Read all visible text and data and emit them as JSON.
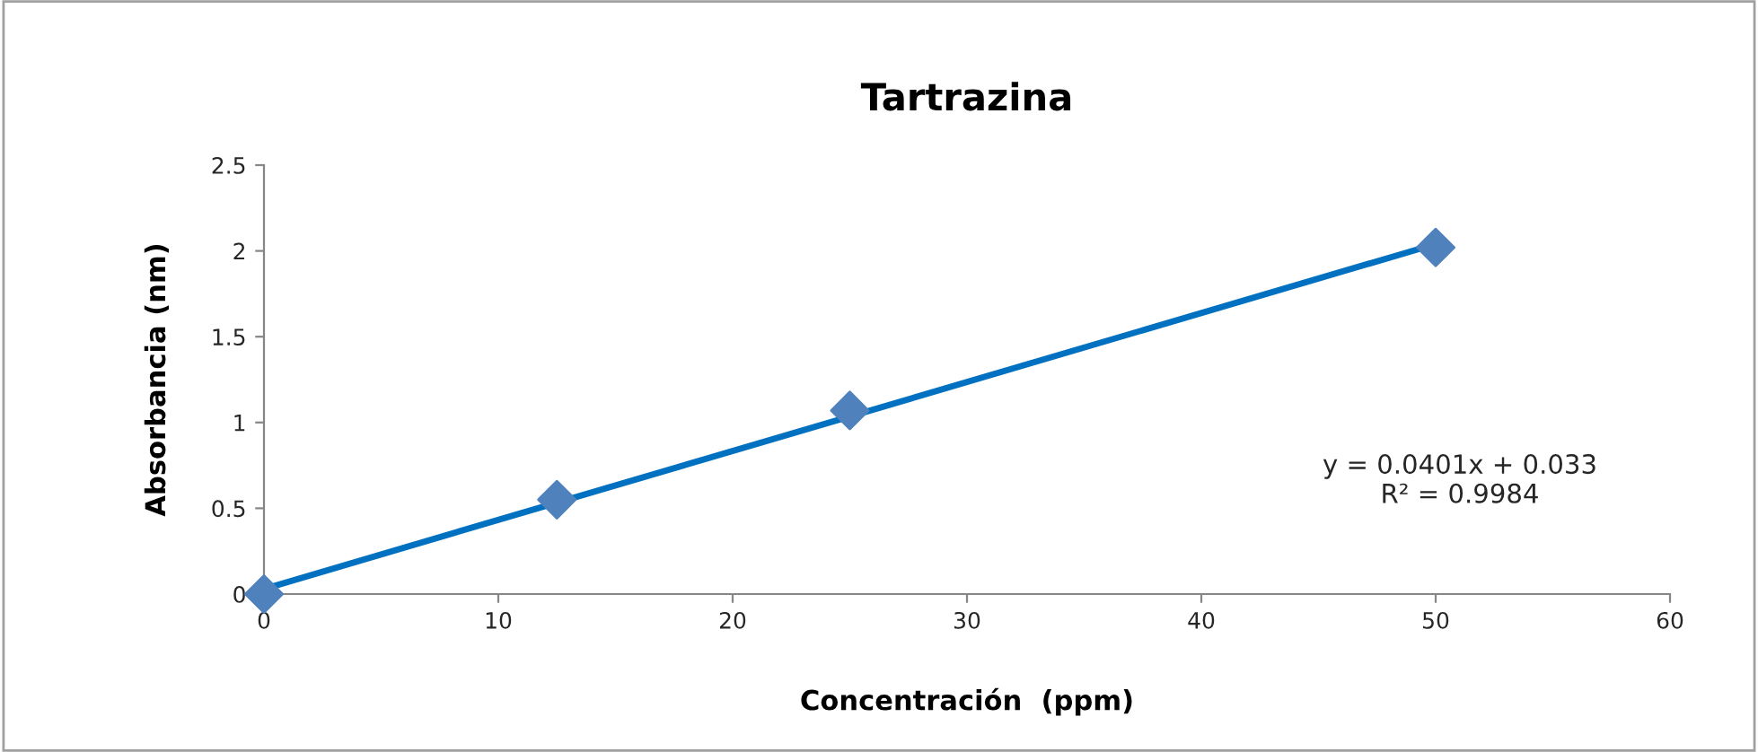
{
  "chart_data": {
    "type": "scatter",
    "title": "Tartrazina",
    "xlabel": "Concentración  (ppm)",
    "ylabel": "Absorbancia (nm)",
    "xlim": [
      0,
      60
    ],
    "xticks": [
      0,
      10,
      20,
      30,
      40,
      50,
      60
    ],
    "ylim": [
      0,
      2.5
    ],
    "yticks": [
      0,
      0.5,
      1,
      1.5,
      2,
      2.5
    ],
    "grid": false,
    "legend": false,
    "series": [
      {
        "type": "line",
        "color": "#0070c0",
        "x": [
          0,
          50
        ],
        "values": [
          0.03,
          2.04
        ],
        "line_style": "solid"
      },
      {
        "color": "#4f81bd",
        "marker": "diamond",
        "x": [
          0,
          12.5,
          25,
          50
        ],
        "values": [
          0,
          0.55,
          1.07,
          2.02
        ]
      }
    ],
    "annotations": [
      "y = 0.0401x + 0.033\nR² = 0.9984"
    ]
  }
}
